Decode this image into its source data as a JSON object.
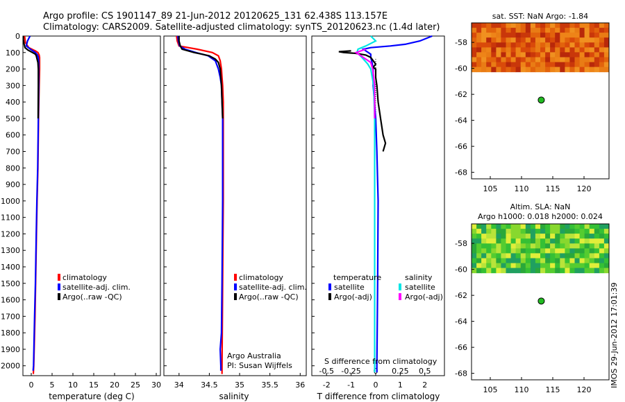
{
  "header": {
    "line1": "Argo profile: CS 1901147_89 21-Jun-2012 20120625_131 62.438S 113.157E",
    "line2": "Climatology: CARS2009. Satellite-adjusted climatology: synTS_20120623.nc (1.4d later)"
  },
  "side_stamp": "IMOS 29-Jun-2012 17:01:39",
  "colors": {
    "climatology": "#ff0000",
    "satellite": "#0000ff",
    "argo": "#000000",
    "sal_sat": "#00e5e5",
    "sal_argo": "#ff00ff"
  },
  "chart_data": [
    {
      "type": "line",
      "name": "temperature-profile",
      "xlabel": "temperature (deg C)",
      "ylabel": "",
      "xlim": [
        -2,
        31
      ],
      "ylim": [
        2060,
        0
      ],
      "xticks": [
        "0",
        "5",
        "10",
        "15",
        "20",
        "25",
        "30"
      ],
      "yticks": [
        "0",
        "100",
        "200",
        "300",
        "400",
        "500",
        "600",
        "700",
        "800",
        "900",
        "1000",
        "1100",
        "1200",
        "1300",
        "1400",
        "1500",
        "1600",
        "1700",
        "1800",
        "1900",
        "2000"
      ],
      "legend": [
        "climatology",
        "satellite-adj. clim.",
        "Argo(..raw -QC)"
      ],
      "series": [
        {
          "name": "climatology",
          "depth": [
            0,
            40,
            70,
            90,
            100,
            115,
            130,
            150,
            180,
            200,
            300,
            500,
            800,
            1000,
            1200,
            1500,
            1700,
            2000,
            2050
          ],
          "values": [
            -1.6,
            -1.4,
            -0.6,
            1.0,
            1.6,
            1.9,
            2.0,
            2.0,
            2.0,
            2.0,
            1.9,
            1.75,
            1.6,
            1.4,
            1.25,
            1.05,
            0.9,
            0.6,
            0.5
          ]
        },
        {
          "name": "satellite-adj. clim.",
          "depth": [
            0,
            30,
            60,
            80,
            100,
            115,
            130,
            160,
            200,
            300,
            500,
            800,
            1000,
            1200,
            1500,
            1700,
            2000,
            2030
          ],
          "values": [
            -0.3,
            -0.9,
            -1.2,
            -0.2,
            1.0,
            1.5,
            1.7,
            1.8,
            1.8,
            1.8,
            1.7,
            1.55,
            1.35,
            1.2,
            1.0,
            0.8,
            0.55,
            0.45
          ]
        },
        {
          "name": "Argo(..raw -QC)",
          "depth": [
            0,
            20,
            50,
            70,
            85,
            100,
            110,
            120,
            140,
            160,
            200,
            300,
            500
          ],
          "values": [
            -1.9,
            -1.9,
            -1.7,
            -1.5,
            -0.8,
            0.3,
            1.0,
            1.2,
            1.4,
            1.6,
            1.7,
            1.7,
            1.65
          ]
        }
      ]
    },
    {
      "type": "line",
      "name": "salinity-profile",
      "xlabel": "salinity",
      "xlim": [
        33.75,
        36.1
      ],
      "ylim": [
        2060,
        0
      ],
      "xticks": [
        "34",
        "34.5",
        "35",
        "35.5",
        "36"
      ],
      "legend": [
        "climatology",
        "satellite-adj. clim.",
        "Argo(..raw -QC)"
      ],
      "note": [
        "Argo Australia",
        "PI: Susan Wijffels"
      ],
      "series": [
        {
          "name": "climatology",
          "depth": [
            0,
            30,
            60,
            80,
            100,
            120,
            150,
            200,
            250,
            300,
            400,
            500,
            700,
            1000,
            1500,
            2000,
            2050
          ],
          "values": [
            33.96,
            33.97,
            34.0,
            34.3,
            34.55,
            34.65,
            34.68,
            34.7,
            34.71,
            34.72,
            34.73,
            34.73,
            34.73,
            34.73,
            34.72,
            34.71,
            34.71
          ]
        },
        {
          "name": "satellite-adj. clim.",
          "depth": [
            0,
            30,
            60,
            80,
            100,
            120,
            150,
            200,
            250,
            300,
            400,
            500,
            700,
            1000,
            1500,
            1800,
            1900,
            2000,
            2030
          ],
          "values": [
            33.98,
            33.99,
            34.01,
            34.1,
            34.28,
            34.48,
            34.6,
            34.65,
            34.68,
            34.7,
            34.71,
            34.72,
            34.72,
            34.72,
            34.71,
            34.7,
            34.68,
            34.69,
            34.69
          ]
        },
        {
          "name": "Argo(..raw -QC)",
          "depth": [
            0,
            30,
            60,
            80,
            100,
            110,
            120,
            140,
            160,
            200,
            300,
            500
          ],
          "values": [
            34.0,
            34.0,
            34.02,
            34.05,
            34.25,
            34.38,
            34.5,
            34.6,
            34.65,
            34.68,
            34.7,
            34.72
          ]
        }
      ]
    },
    {
      "type": "line",
      "name": "difference-profile",
      "xlabel": "T difference from climatology",
      "xlabel_top": "S difference from climatology",
      "xlim": [
        -2.6,
        2.8
      ],
      "ylim": [
        2060,
        0
      ],
      "xticks": [
        "-2",
        "-1",
        "0",
        "1",
        "2"
      ],
      "xticks_s": [
        "-0.5",
        "-0.25",
        "0",
        "0.25",
        "0.5"
      ],
      "legend_groups": [
        {
          "title": "temperature",
          "items": [
            "satellite",
            "Argo(-adj)"
          ]
        },
        {
          "title": "salinity",
          "items": [
            "satellite",
            "Argo(-adj)"
          ]
        }
      ],
      "series": [
        {
          "name": "temperature satellite",
          "depth": [
            0,
            30,
            50,
            60,
            70,
            80,
            90,
            100,
            110,
            130,
            160,
            200,
            300,
            500,
            700,
            1000,
            1500,
            2000,
            2040
          ],
          "values": [
            2.3,
            1.8,
            1.2,
            0.6,
            -0.2,
            -0.5,
            -0.4,
            -0.3,
            -0.2,
            -0.2,
            -0.15,
            -0.1,
            -0.1,
            0.0,
            0.05,
            0.1,
            0.08,
            0.05,
            0.05
          ]
        },
        {
          "name": "temperature Argo(-adj)",
          "depth": [
            90,
            95,
            100,
            105,
            115,
            130,
            150,
            170,
            190,
            200,
            250,
            300,
            400,
            500,
            600,
            650,
            700
          ],
          "values": [
            -1.0,
            -1.5,
            -1.3,
            -0.8,
            -0.4,
            -0.2,
            -0.1,
            0.0,
            -0.1,
            0.0,
            0.0,
            0.05,
            0.1,
            0.2,
            0.3,
            0.4,
            0.3
          ]
        },
        {
          "name": "salinity satellite",
          "depth": [
            0,
            30,
            60,
            80,
            100,
            130,
            170,
            200,
            300,
            500,
            800,
            1000,
            1500,
            2000,
            2040
          ],
          "values": [
            -0.05,
            0.0,
            -0.1,
            -0.18,
            -0.19,
            -0.14,
            -0.08,
            -0.05,
            -0.02,
            -0.01,
            -0.01,
            -0.01,
            -0.01,
            -0.01,
            -0.01
          ]
        },
        {
          "name": "salinity Argo(-adj)",
          "depth": [
            80,
            100,
            120,
            140,
            160,
            200,
            250,
            300,
            400,
            500
          ],
          "values": [
            -0.1,
            -0.2,
            -0.15,
            -0.1,
            -0.05,
            -0.03,
            -0.02,
            -0.01,
            -0.01,
            -0.01
          ]
        }
      ]
    },
    {
      "type": "heatmap",
      "name": "sst-map",
      "title": "sat. SST: NaN Argo: -1.84",
      "xlim": [
        102,
        124
      ],
      "ylim": [
        -68.5,
        -56.5
      ],
      "xticks": [
        "105",
        "110",
        "115",
        "120"
      ],
      "yticks": [
        "-58",
        "-60",
        "-62",
        "-64",
        "-66",
        "-68"
      ],
      "marker": {
        "lon": 113.157,
        "lat": -62.438
      }
    },
    {
      "type": "heatmap",
      "name": "sla-map",
      "title": "Altim. SLA: NaN",
      "subtitle": "Argo h1000: 0.018 h2000: 0.024",
      "xlim": [
        102,
        124
      ],
      "ylim": [
        -68.5,
        -56.5
      ],
      "xticks": [
        "105",
        "110",
        "115",
        "120"
      ],
      "yticks": [
        "-58",
        "-60",
        "-62",
        "-64",
        "-66",
        "-68"
      ],
      "marker": {
        "lon": 113.157,
        "lat": -62.438
      }
    }
  ]
}
